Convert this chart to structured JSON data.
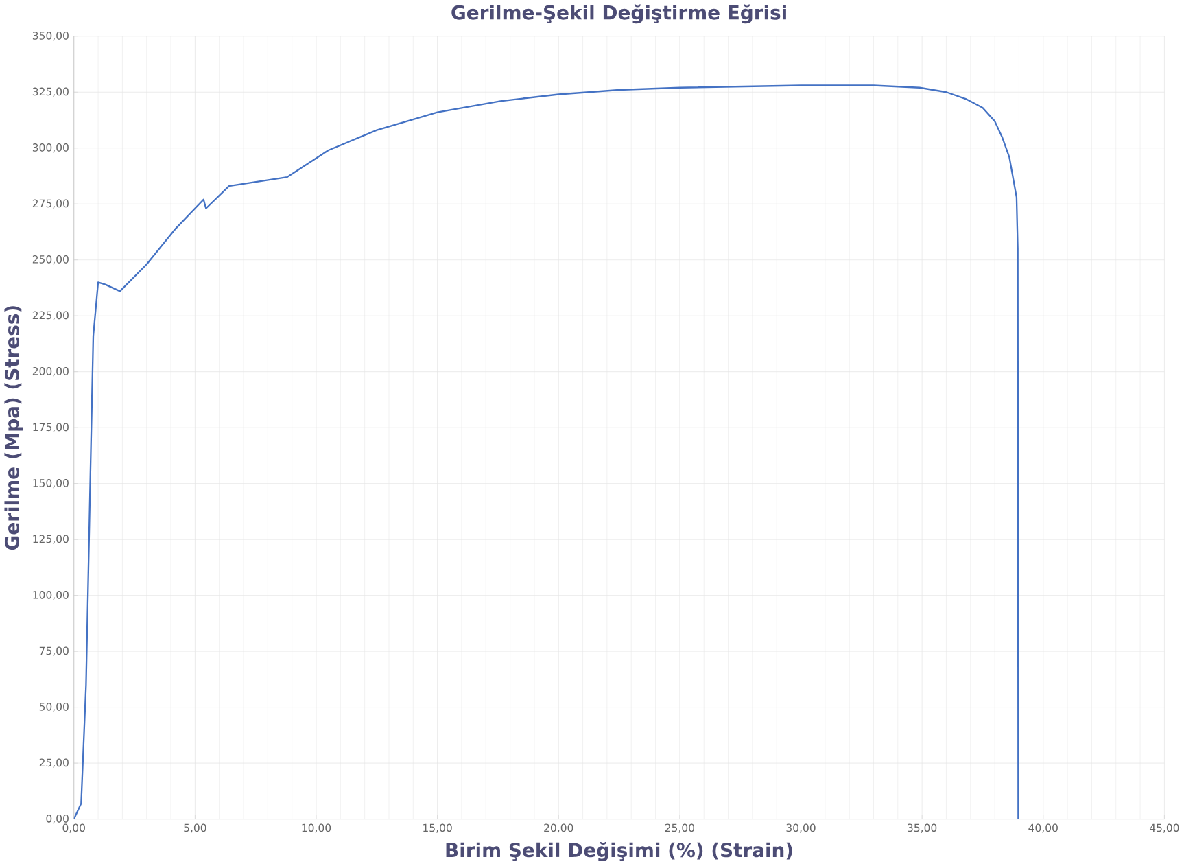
{
  "chart_data": {
    "type": "line",
    "title": "Gerilme-Şekil Değiştirme Eğrisi",
    "xlabel": "Birim Şekil Değişimi (%) (Strain)",
    "ylabel": "Gerilme (Mpa) (Stress)",
    "series": [
      {
        "color": "#4472c4",
        "x": [
          0,
          0.3,
          0.5,
          0.8,
          1.0,
          1.3,
          1.9,
          3.0,
          4.2,
          5.35,
          5.45,
          6.4,
          8.8,
          10.5,
          12.5,
          15.0,
          17.6,
          20.0,
          22.5,
          25.0,
          30.0,
          33.0,
          34.9,
          36.0,
          36.8,
          37.5,
          38.0,
          38.3,
          38.6,
          38.9,
          38.95,
          38.97
        ],
        "values": [
          0,
          7,
          60,
          216,
          240,
          239,
          236,
          248,
          264,
          277,
          273,
          283,
          287,
          299,
          308,
          316,
          321,
          324,
          326,
          327,
          328,
          328,
          327,
          325,
          322,
          318,
          312,
          305,
          296,
          278,
          255,
          0
        ]
      }
    ],
    "xlim": [
      0,
      45
    ],
    "ylim": [
      0,
      350
    ],
    "xticks": [
      {
        "value": 0,
        "label": "0,00"
      },
      {
        "value": 5,
        "label": "5,00"
      },
      {
        "value": 10,
        "label": "10,00"
      },
      {
        "value": 15,
        "label": "15,00"
      },
      {
        "value": 20,
        "label": "20,00"
      },
      {
        "value": 25,
        "label": "25,00"
      },
      {
        "value": 30,
        "label": "30,00"
      },
      {
        "value": 35,
        "label": "35,00"
      },
      {
        "value": 40,
        "label": "40,00"
      },
      {
        "value": 45,
        "label": "45,00"
      }
    ],
    "yticks": [
      {
        "value": 0,
        "label": "0,00"
      },
      {
        "value": 25,
        "label": "25,00"
      },
      {
        "value": 50,
        "label": "50,00"
      },
      {
        "value": 75,
        "label": "75,00"
      },
      {
        "value": 100,
        "label": "100,00"
      },
      {
        "value": 125,
        "label": "125,00"
      },
      {
        "value": 150,
        "label": "150,00"
      },
      {
        "value": 175,
        "label": "175,00"
      },
      {
        "value": 200,
        "label": "200,00"
      },
      {
        "value": 225,
        "label": "225,00"
      },
      {
        "value": 250,
        "label": "250,00"
      },
      {
        "value": 275,
        "label": "275,00"
      },
      {
        "value": 300,
        "label": "300,00"
      },
      {
        "value": 325,
        "label": "325,00"
      },
      {
        "value": 350,
        "label": "350,00"
      }
    ],
    "grid": true,
    "marker": "none",
    "line_style": "solid"
  }
}
